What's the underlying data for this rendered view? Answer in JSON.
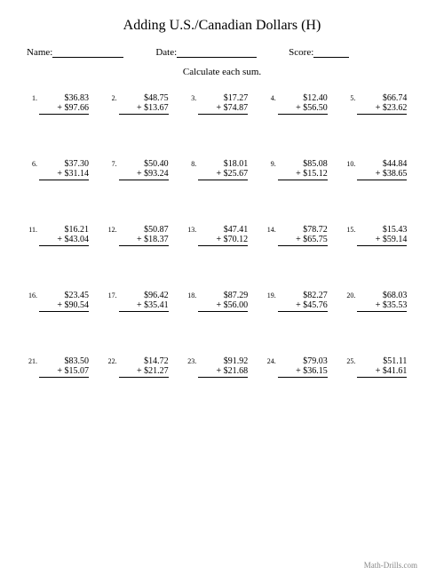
{
  "title": "Adding U.S./Canadian Dollars (H)",
  "name_label": "Name:",
  "date_label": "Date:",
  "score_label": "Score:",
  "instruction": "Calculate each sum.",
  "footer": "Math-Drills.com",
  "problems": [
    {
      "n": "1.",
      "a": "$36.83",
      "b": "+ $97.66"
    },
    {
      "n": "2.",
      "a": "$48.75",
      "b": "+ $13.67"
    },
    {
      "n": "3.",
      "a": "$17.27",
      "b": "+ $74.87"
    },
    {
      "n": "4.",
      "a": "$12.40",
      "b": "+ $56.50"
    },
    {
      "n": "5.",
      "a": "$66.74",
      "b": "+ $23.62"
    },
    {
      "n": "6.",
      "a": "$37.30",
      "b": "+ $31.14"
    },
    {
      "n": "7.",
      "a": "$50.40",
      "b": "+ $93.24"
    },
    {
      "n": "8.",
      "a": "$18.01",
      "b": "+ $25.67"
    },
    {
      "n": "9.",
      "a": "$85.08",
      "b": "+ $15.12"
    },
    {
      "n": "10.",
      "a": "$44.84",
      "b": "+ $38.65"
    },
    {
      "n": "11.",
      "a": "$16.21",
      "b": "+ $43.04"
    },
    {
      "n": "12.",
      "a": "$50.87",
      "b": "+ $18.37"
    },
    {
      "n": "13.",
      "a": "$47.41",
      "b": "+ $70.12"
    },
    {
      "n": "14.",
      "a": "$78.72",
      "b": "+ $65.75"
    },
    {
      "n": "15.",
      "a": "$15.43",
      "b": "+ $59.14"
    },
    {
      "n": "16.",
      "a": "$23.45",
      "b": "+ $90.54"
    },
    {
      "n": "17.",
      "a": "$96.42",
      "b": "+ $35.41"
    },
    {
      "n": "18.",
      "a": "$87.29",
      "b": "+ $56.00"
    },
    {
      "n": "19.",
      "a": "$82.27",
      "b": "+ $45.76"
    },
    {
      "n": "20.",
      "a": "$68.03",
      "b": "+ $35.53"
    },
    {
      "n": "21.",
      "a": "$83.50",
      "b": "+ $15.07"
    },
    {
      "n": "22.",
      "a": "$14.72",
      "b": "+ $21.27"
    },
    {
      "n": "23.",
      "a": "$91.92",
      "b": "+ $21.68"
    },
    {
      "n": "24.",
      "a": "$79.03",
      "b": "+ $36.15"
    },
    {
      "n": "25.",
      "a": "$51.11",
      "b": "+ $41.61"
    }
  ]
}
